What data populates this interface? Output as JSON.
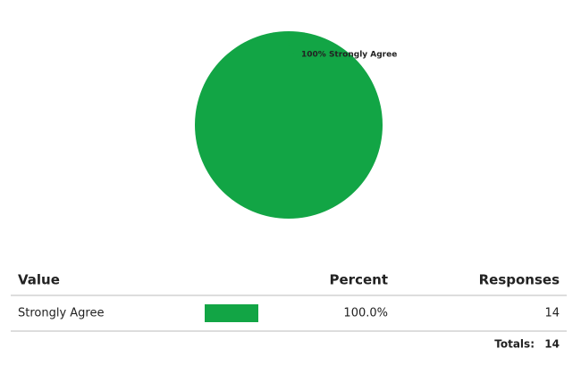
{
  "chart_data": {
    "type": "pie",
    "categories": [
      "Strongly Agree"
    ],
    "values": [
      100
    ],
    "value_labels": [
      "100% Strongly Agree"
    ],
    "colors": [
      "#12a545"
    ]
  },
  "table": {
    "columns": [
      "Value",
      "Percent",
      "Responses"
    ],
    "rows": [
      {
        "value": "Strongly Agree",
        "percent": {
          "value": 100,
          "label": "100.0%"
        },
        "responses": 14
      }
    ],
    "totals": {
      "label": "Totals:",
      "value": 14
    }
  }
}
